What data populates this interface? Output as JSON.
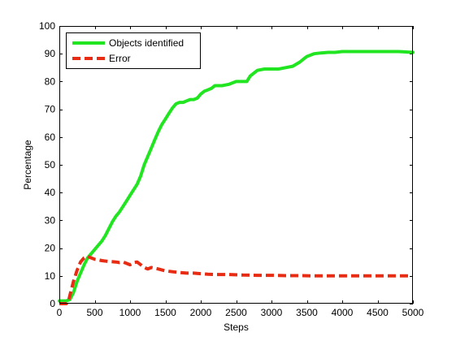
{
  "chart_data": {
    "type": "line",
    "xlabel": "Steps",
    "ylabel": "Percentage",
    "xlim": [
      0,
      5000
    ],
    "ylim": [
      0,
      100
    ],
    "xticks": [
      0,
      500,
      1000,
      1500,
      2000,
      2500,
      3000,
      3500,
      4000,
      4500,
      5000
    ],
    "yticks": [
      0,
      10,
      20,
      30,
      40,
      50,
      60,
      70,
      80,
      90,
      100
    ],
    "grid": false,
    "legend_position": "top-left",
    "series": [
      {
        "name": "Objects identified",
        "color": "#22e522",
        "style": "solid",
        "x": [
          0,
          100,
          150,
          200,
          250,
          300,
          350,
          400,
          450,
          500,
          550,
          600,
          650,
          700,
          750,
          800,
          850,
          900,
          950,
          1000,
          1050,
          1100,
          1150,
          1200,
          1250,
          1300,
          1350,
          1400,
          1450,
          1500,
          1550,
          1600,
          1650,
          1700,
          1750,
          1800,
          1850,
          1900,
          1950,
          2000,
          2050,
          2100,
          2150,
          2200,
          2300,
          2400,
          2500,
          2600,
          2650,
          2700,
          2800,
          2900,
          3000,
          3100,
          3200,
          3300,
          3400,
          3450,
          3500,
          3600,
          3700,
          3800,
          3900,
          4000,
          4200,
          4400,
          4600,
          4800,
          5000
        ],
        "y": [
          1,
          1,
          1.5,
          4,
          8,
          11,
          14,
          16.5,
          18,
          19.5,
          21,
          22.5,
          24.5,
          27,
          29.5,
          31.5,
          33,
          35,
          37,
          39,
          41,
          43,
          46,
          50,
          53,
          56,
          59,
          62,
          64.5,
          66.5,
          68.5,
          70.5,
          72,
          72.5,
          72.5,
          73,
          73.5,
          73.5,
          74,
          75.5,
          76.5,
          77,
          77.5,
          78.5,
          78.5,
          79,
          80,
          80,
          80,
          82,
          84,
          84.5,
          84.5,
          84.5,
          85,
          85.5,
          87,
          88,
          89,
          90,
          90.3,
          90.5,
          90.5,
          90.8,
          90.8,
          90.8,
          90.8,
          90.8,
          90.5
        ]
      },
      {
        "name": "Error",
        "color": "#e82c14",
        "style": "dashed",
        "x": [
          0,
          100,
          130,
          160,
          200,
          250,
          300,
          350,
          400,
          450,
          500,
          550,
          600,
          700,
          800,
          850,
          900,
          950,
          1000,
          1050,
          1100,
          1150,
          1200,
          1250,
          1300,
          1400,
          1500,
          1600,
          1700,
          1800,
          1900,
          2000,
          2100,
          2200,
          2400,
          2600,
          2800,
          3000,
          3200,
          3400,
          3600,
          3800,
          4000,
          4500,
          5000
        ],
        "y": [
          0,
          0,
          1,
          4,
          8,
          12,
          15,
          16.5,
          17,
          16.5,
          16,
          15.8,
          15.5,
          15.2,
          15,
          14.8,
          15,
          14.5,
          14,
          14.8,
          15,
          14,
          13,
          12.5,
          13,
          12.5,
          11.8,
          11.5,
          11.2,
          11,
          11,
          10.8,
          10.6,
          10.5,
          10.5,
          10.3,
          10.2,
          10.2,
          10.1,
          10.1,
          10,
          10,
          10,
          10,
          10
        ]
      }
    ]
  }
}
